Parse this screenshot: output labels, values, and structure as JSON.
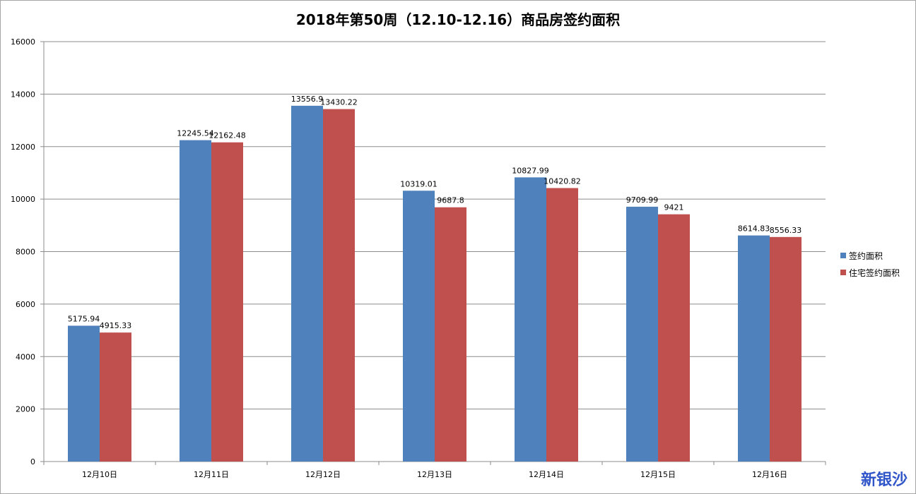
{
  "chart_data": {
    "type": "bar",
    "title": "2018年第50周（12.10-12.16）商品房签约面积",
    "categories": [
      "12月10日",
      "12月11日",
      "12月12日",
      "12月13日",
      "12月14日",
      "12月15日",
      "12月16日"
    ],
    "series": [
      {
        "name": "签约面积",
        "color": "#4f81bd",
        "values": [
          5175.94,
          12245.54,
          13556.9,
          10319.01,
          10827.99,
          9709.99,
          8614.83
        ],
        "labels": [
          "5175.94",
          "12245.54",
          "13556.9",
          "10319.01",
          "10827.99",
          "9709.99",
          "8614.83"
        ]
      },
      {
        "name": "住宅签约面积",
        "color": "#c0504d",
        "values": [
          4915.33,
          12162.48,
          13430.22,
          9687.8,
          10420.82,
          9421,
          8556.33
        ],
        "labels": [
          "4915.33",
          "12162.48",
          "13430.22",
          "9687.8",
          "10420.82",
          "9421",
          "8556.33"
        ]
      }
    ],
    "ylim": [
      0,
      16000
    ],
    "yticks": [
      "0",
      "2000",
      "4000",
      "6000",
      "8000",
      "10000",
      "12000",
      "14000",
      "16000"
    ],
    "grid": true,
    "legend_position": "right"
  },
  "watermark": "新银沙"
}
